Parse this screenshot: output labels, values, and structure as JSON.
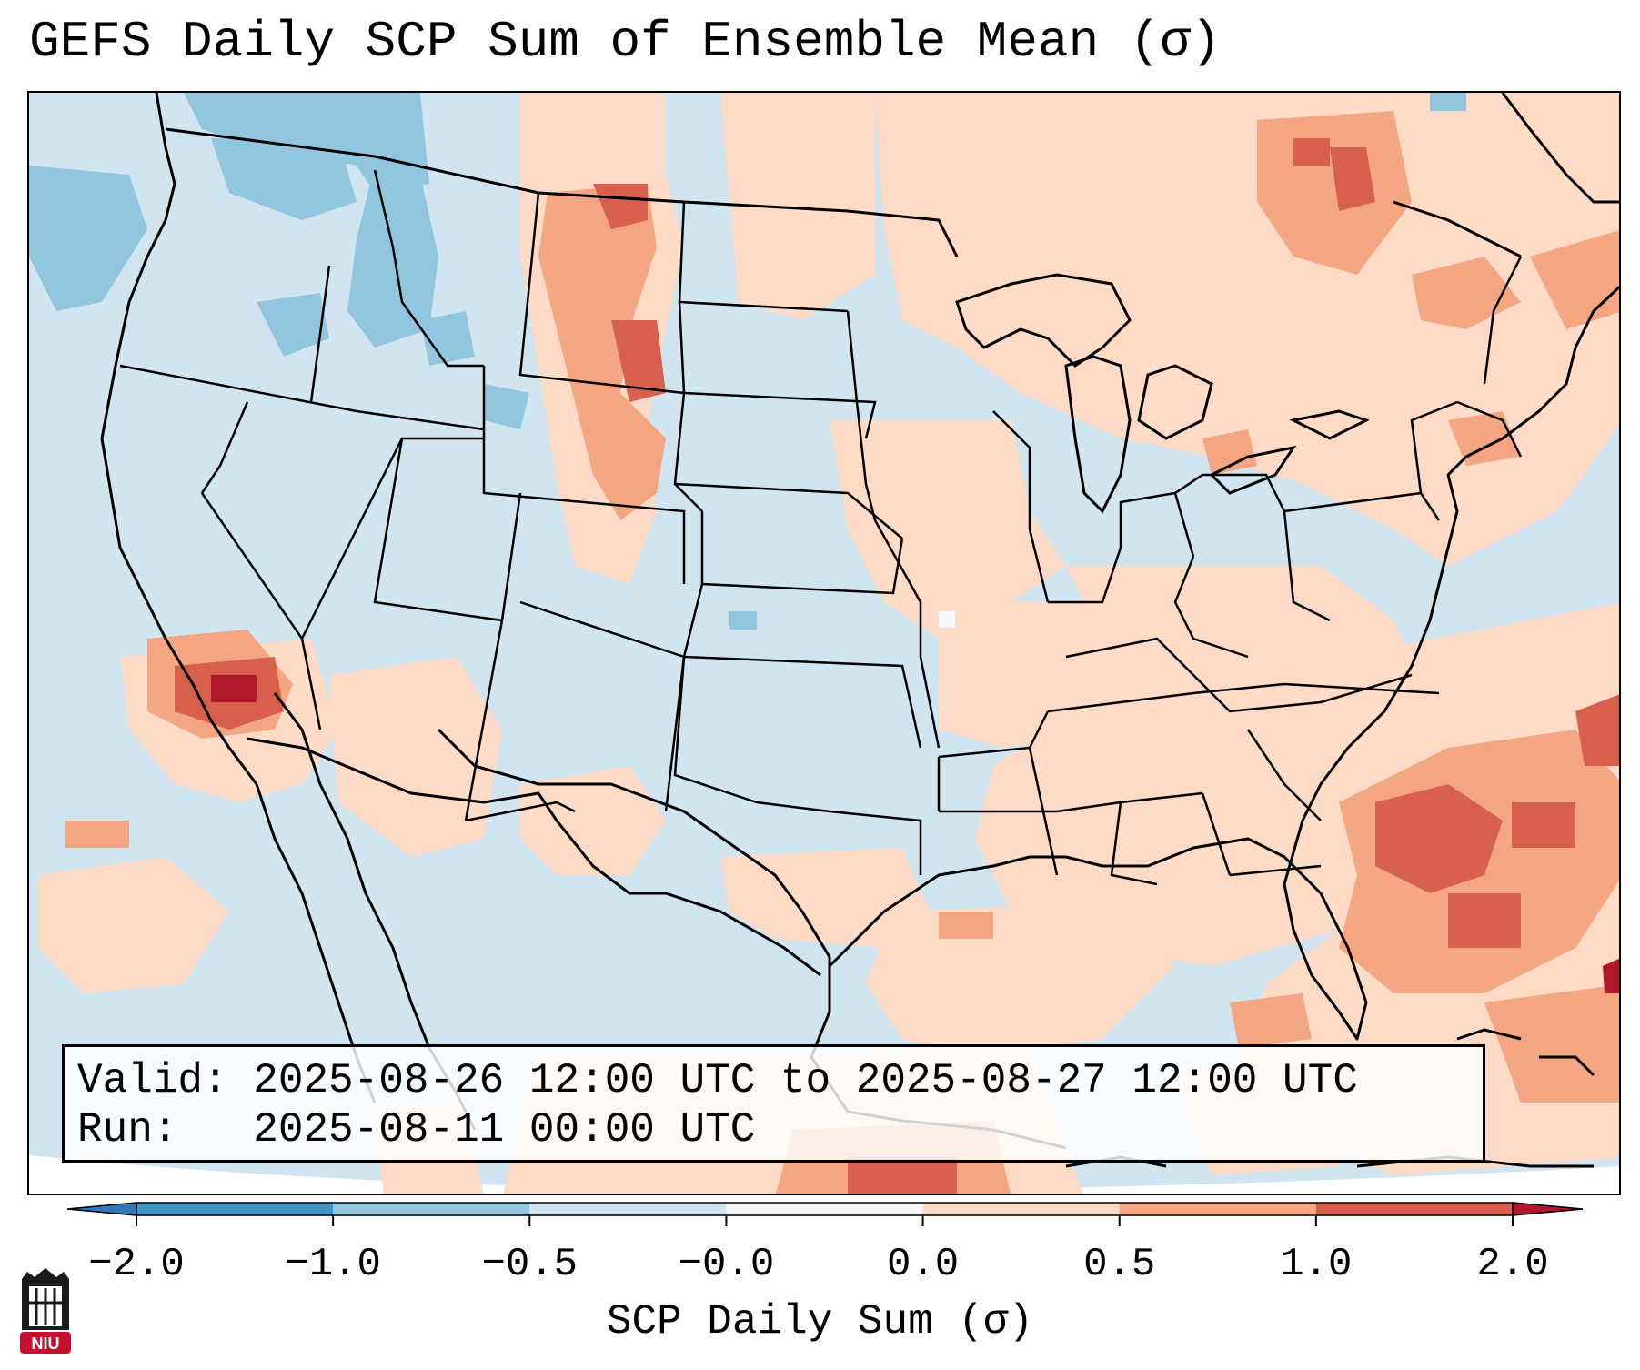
{
  "title": "GEFS Daily SCP Sum of Ensemble Mean (σ)",
  "info": {
    "valid_line": "Valid: 2025-08-26 12:00 UTC to 2025-08-27 12:00 UTC",
    "run_line": "Run:   2025-08-11 00:00 UTC"
  },
  "colorbar": {
    "label": "SCP Daily Sum (σ)",
    "ticks": [
      "−2.0",
      "−1.0",
      "−0.5",
      "−0.0",
      "0.0",
      "0.5",
      "1.0",
      "2.0"
    ],
    "bins": [
      {
        "range": "< -2.0",
        "color": "#2f79b8"
      },
      {
        "range": "-2.0 to -1.0",
        "color": "#4393c3"
      },
      {
        "range": "-1.0 to -0.5",
        "color": "#92c5de"
      },
      {
        "range": "-0.5 to -0.0",
        "color": "#d1e5f0"
      },
      {
        "range": "-0.0 to 0.0",
        "color": "#f7f7f7"
      },
      {
        "range": "0.0 to 0.5",
        "color": "#fddbc7"
      },
      {
        "range": "0.5 to 1.0",
        "color": "#f4a582"
      },
      {
        "range": "1.0 to 2.0",
        "color": "#d6604d"
      },
      {
        "range": "> 2.0",
        "color": "#b2182b"
      }
    ]
  },
  "logo": {
    "text": "NIU",
    "color": "#c8102e"
  }
}
